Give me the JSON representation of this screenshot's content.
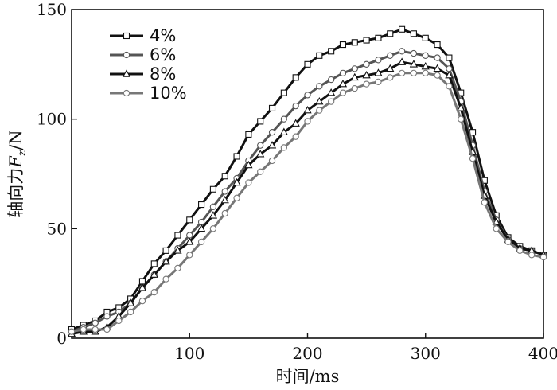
{
  "chart_data": {
    "type": "line",
    "xlabel": "时间/ms",
    "ylabel": "轴向力F_z/N",
    "ylabel_parts": {
      "prefix": "轴向力",
      "var": "F",
      "sub": "z",
      "suffix": "/N"
    },
    "xlim": [
      0,
      400
    ],
    "ylim": [
      0,
      150
    ],
    "xticks": [
      100,
      200,
      300,
      400
    ],
    "yticks": [
      0,
      50,
      100,
      150
    ],
    "grid": false,
    "legend_position": "top-left",
    "series": [
      {
        "name": "4%",
        "color": "#111111",
        "marker": "square",
        "x": [
          0,
          10,
          20,
          30,
          40,
          50,
          60,
          70,
          80,
          90,
          100,
          110,
          120,
          130,
          140,
          150,
          160,
          170,
          180,
          190,
          200,
          210,
          220,
          230,
          240,
          250,
          260,
          270,
          280,
          290,
          300,
          310,
          320,
          330,
          340,
          350,
          360,
          370,
          380,
          390,
          400
        ],
        "y": [
          4,
          6,
          8,
          12,
          14,
          18,
          26,
          34,
          40,
          47,
          54,
          61,
          68,
          74,
          83,
          93,
          99,
          105,
          112,
          119,
          125,
          129,
          131,
          134,
          135,
          136,
          137,
          139,
          141,
          139,
          137,
          134,
          128,
          112,
          94,
          72,
          56,
          46,
          42,
          40,
          38
        ],
        "markers": [
          0,
          10,
          20,
          30,
          40,
          50,
          60,
          70,
          80,
          90,
          100,
          110,
          120,
          130,
          140,
          150,
          160,
          170,
          180,
          190,
          200,
          210,
          220,
          230,
          240,
          250,
          260,
          270,
          280,
          290,
          300,
          310,
          320,
          330,
          340,
          350,
          360,
          370,
          380,
          390,
          400
        ]
      },
      {
        "name": "6%",
        "color": "#555555",
        "marker": "circle",
        "x": [
          0,
          10,
          20,
          30,
          40,
          50,
          60,
          70,
          80,
          90,
          100,
          110,
          120,
          130,
          140,
          150,
          160,
          170,
          180,
          190,
          200,
          210,
          220,
          230,
          240,
          250,
          260,
          270,
          280,
          290,
          300,
          310,
          320,
          330,
          340,
          350,
          360,
          370,
          380,
          390,
          400
        ],
        "y": [
          3,
          5,
          7,
          10,
          12,
          16,
          23,
          29,
          35,
          41,
          47,
          53,
          60,
          67,
          73,
          81,
          88,
          94,
          100,
          106,
          111,
          115,
          118,
          121,
          123,
          125,
          127,
          129,
          131,
          130,
          129,
          128,
          123,
          108,
          88,
          67,
          54,
          45,
          41,
          40,
          38
        ],
        "markers": [
          0,
          10,
          20,
          30,
          40,
          50,
          60,
          70,
          80,
          90,
          100,
          110,
          120,
          130,
          140,
          150,
          160,
          170,
          180,
          190,
          200,
          210,
          220,
          230,
          240,
          250,
          260,
          270,
          280,
          290,
          300,
          310,
          320,
          330,
          340,
          350,
          360,
          370,
          380,
          390,
          400
        ]
      },
      {
        "name": "8%",
        "color": "#111111",
        "marker": "triangle",
        "x": [
          0,
          10,
          20,
          30,
          40,
          50,
          60,
          70,
          80,
          90,
          100,
          110,
          120,
          130,
          140,
          150,
          160,
          170,
          180,
          190,
          200,
          210,
          220,
          230,
          240,
          250,
          260,
          270,
          280,
          290,
          300,
          310,
          320,
          330,
          340,
          350,
          360,
          370,
          380,
          390,
          400
        ],
        "y": [
          2,
          3,
          3,
          5,
          10,
          16,
          23,
          29,
          35,
          40,
          44,
          50,
          56,
          63,
          71,
          79,
          84,
          88,
          94,
          98,
          104,
          108,
          112,
          116,
          119,
          120,
          121,
          123,
          126,
          125,
          124,
          123,
          120,
          105,
          85,
          65,
          53,
          45,
          41,
          40,
          38
        ],
        "markers": [
          0,
          10,
          20,
          30,
          40,
          50,
          60,
          70,
          80,
          90,
          100,
          110,
          120,
          130,
          140,
          150,
          160,
          170,
          180,
          190,
          200,
          210,
          220,
          230,
          240,
          250,
          260,
          270,
          280,
          290,
          300,
          310,
          320,
          330,
          340,
          350,
          360,
          370,
          380,
          390,
          400
        ]
      },
      {
        "name": "10%",
        "color": "#777777",
        "marker": "circle",
        "x": [
          0,
          10,
          20,
          30,
          40,
          50,
          60,
          70,
          80,
          90,
          100,
          110,
          120,
          130,
          140,
          150,
          160,
          170,
          180,
          190,
          200,
          210,
          220,
          230,
          240,
          250,
          260,
          270,
          280,
          290,
          300,
          310,
          320,
          330,
          340,
          350,
          360,
          370,
          380,
          390,
          400
        ],
        "y": [
          3,
          4,
          4,
          4,
          8,
          12,
          17,
          21,
          27,
          32,
          38,
          44,
          50,
          57,
          64,
          71,
          76,
          81,
          87,
          92,
          99,
          104,
          108,
          112,
          114,
          116,
          117,
          119,
          121,
          121,
          121,
          120,
          115,
          100,
          82,
          62,
          50,
          44,
          40,
          38,
          37
        ],
        "markers": [
          0,
          10,
          20,
          30,
          40,
          50,
          60,
          70,
          80,
          90,
          100,
          110,
          120,
          130,
          140,
          150,
          160,
          170,
          180,
          190,
          200,
          210,
          220,
          230,
          240,
          250,
          260,
          270,
          280,
          290,
          300,
          310,
          320,
          330,
          340,
          350,
          360,
          370,
          380,
          390,
          400
        ]
      }
    ]
  }
}
